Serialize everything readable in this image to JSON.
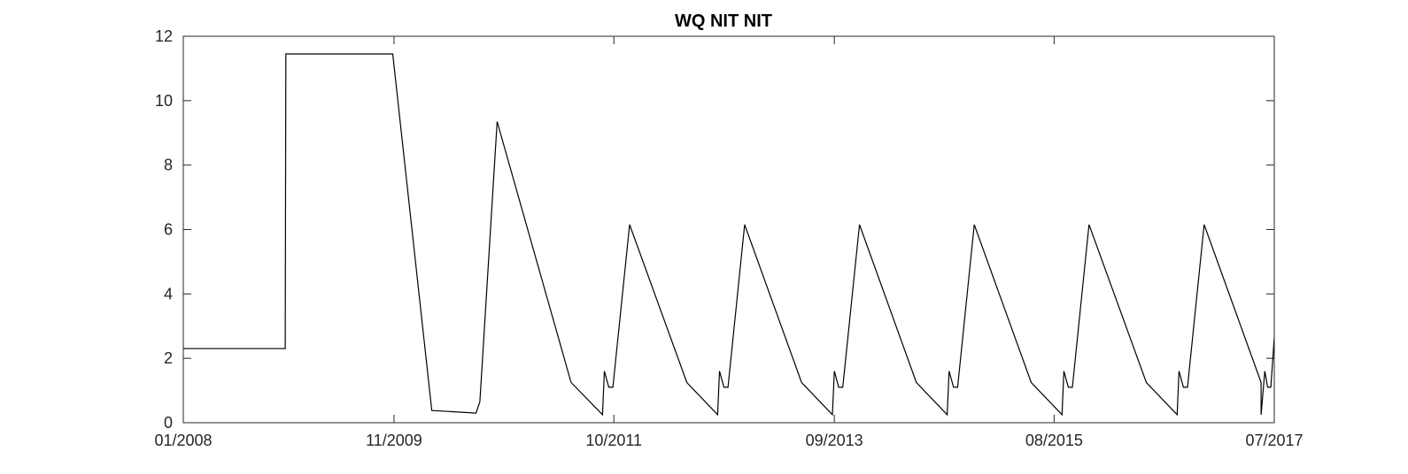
{
  "chart_data": {
    "type": "line",
    "title": "WQ NIT NIT",
    "xlabel": "",
    "ylabel": "",
    "xlim": [
      "2008-01-01",
      "2017-07-01"
    ],
    "ylim": [
      0,
      12
    ],
    "x_ticks": [
      "2008-01-01",
      "2009-11-01",
      "2011-10-01",
      "2013-09-01",
      "2015-08-01",
      "2017-07-01"
    ],
    "x_tick_labels": [
      "01/2008",
      "11/2009",
      "10/2011",
      "09/2013",
      "08/2015",
      "07/2017"
    ],
    "y_ticks": [
      0,
      2,
      4,
      6,
      8,
      10,
      12
    ],
    "y_tick_labels": [
      "0",
      "2",
      "4",
      "6",
      "8",
      "10",
      "12"
    ],
    "grid": false,
    "line_color": "#000000",
    "series": [
      {
        "x": [
          "2008-01-01",
          "2008-11-20",
          "2008-11-22",
          "2009-10-28",
          "2010-03-01",
          "2010-07-20",
          "2010-08-01",
          "2010-09-25",
          "2011-05-18",
          "2011-08-26",
          "2011-09-01",
          "2011-09-15",
          "2011-09-28",
          "2011-11-20",
          "2012-05-20",
          "2012-08-26",
          "2012-09-01",
          "2012-09-15",
          "2012-09-28",
          "2012-11-20",
          "2013-05-20",
          "2013-08-26",
          "2013-09-01",
          "2013-09-15",
          "2013-09-28",
          "2013-11-20",
          "2014-05-20",
          "2014-08-26",
          "2014-09-01",
          "2014-09-15",
          "2014-09-28",
          "2014-11-20",
          "2015-05-20",
          "2015-08-26",
          "2015-09-01",
          "2015-09-15",
          "2015-09-28",
          "2015-11-20",
          "2016-05-20",
          "2016-08-26",
          "2016-09-01",
          "2016-09-15",
          "2016-09-28",
          "2016-11-20",
          "2017-05-20",
          "2017-05-20",
          "2017-06-01",
          "2017-06-10",
          "2017-06-20",
          "2017-07-01"
        ],
        "y": [
          2.3,
          2.3,
          11.45,
          11.45,
          0.38,
          0.3,
          0.65,
          9.35,
          1.25,
          0.25,
          1.6,
          1.1,
          1.1,
          6.15,
          1.25,
          0.25,
          1.6,
          1.1,
          1.1,
          6.15,
          1.25,
          0.25,
          1.6,
          1.1,
          1.1,
          6.15,
          1.25,
          0.25,
          1.6,
          1.1,
          1.1,
          6.15,
          1.25,
          0.25,
          1.6,
          1.1,
          1.1,
          6.15,
          1.25,
          0.25,
          1.6,
          1.1,
          1.1,
          6.15,
          1.25,
          0.25,
          1.6,
          1.1,
          1.1,
          2.65
        ]
      }
    ]
  }
}
